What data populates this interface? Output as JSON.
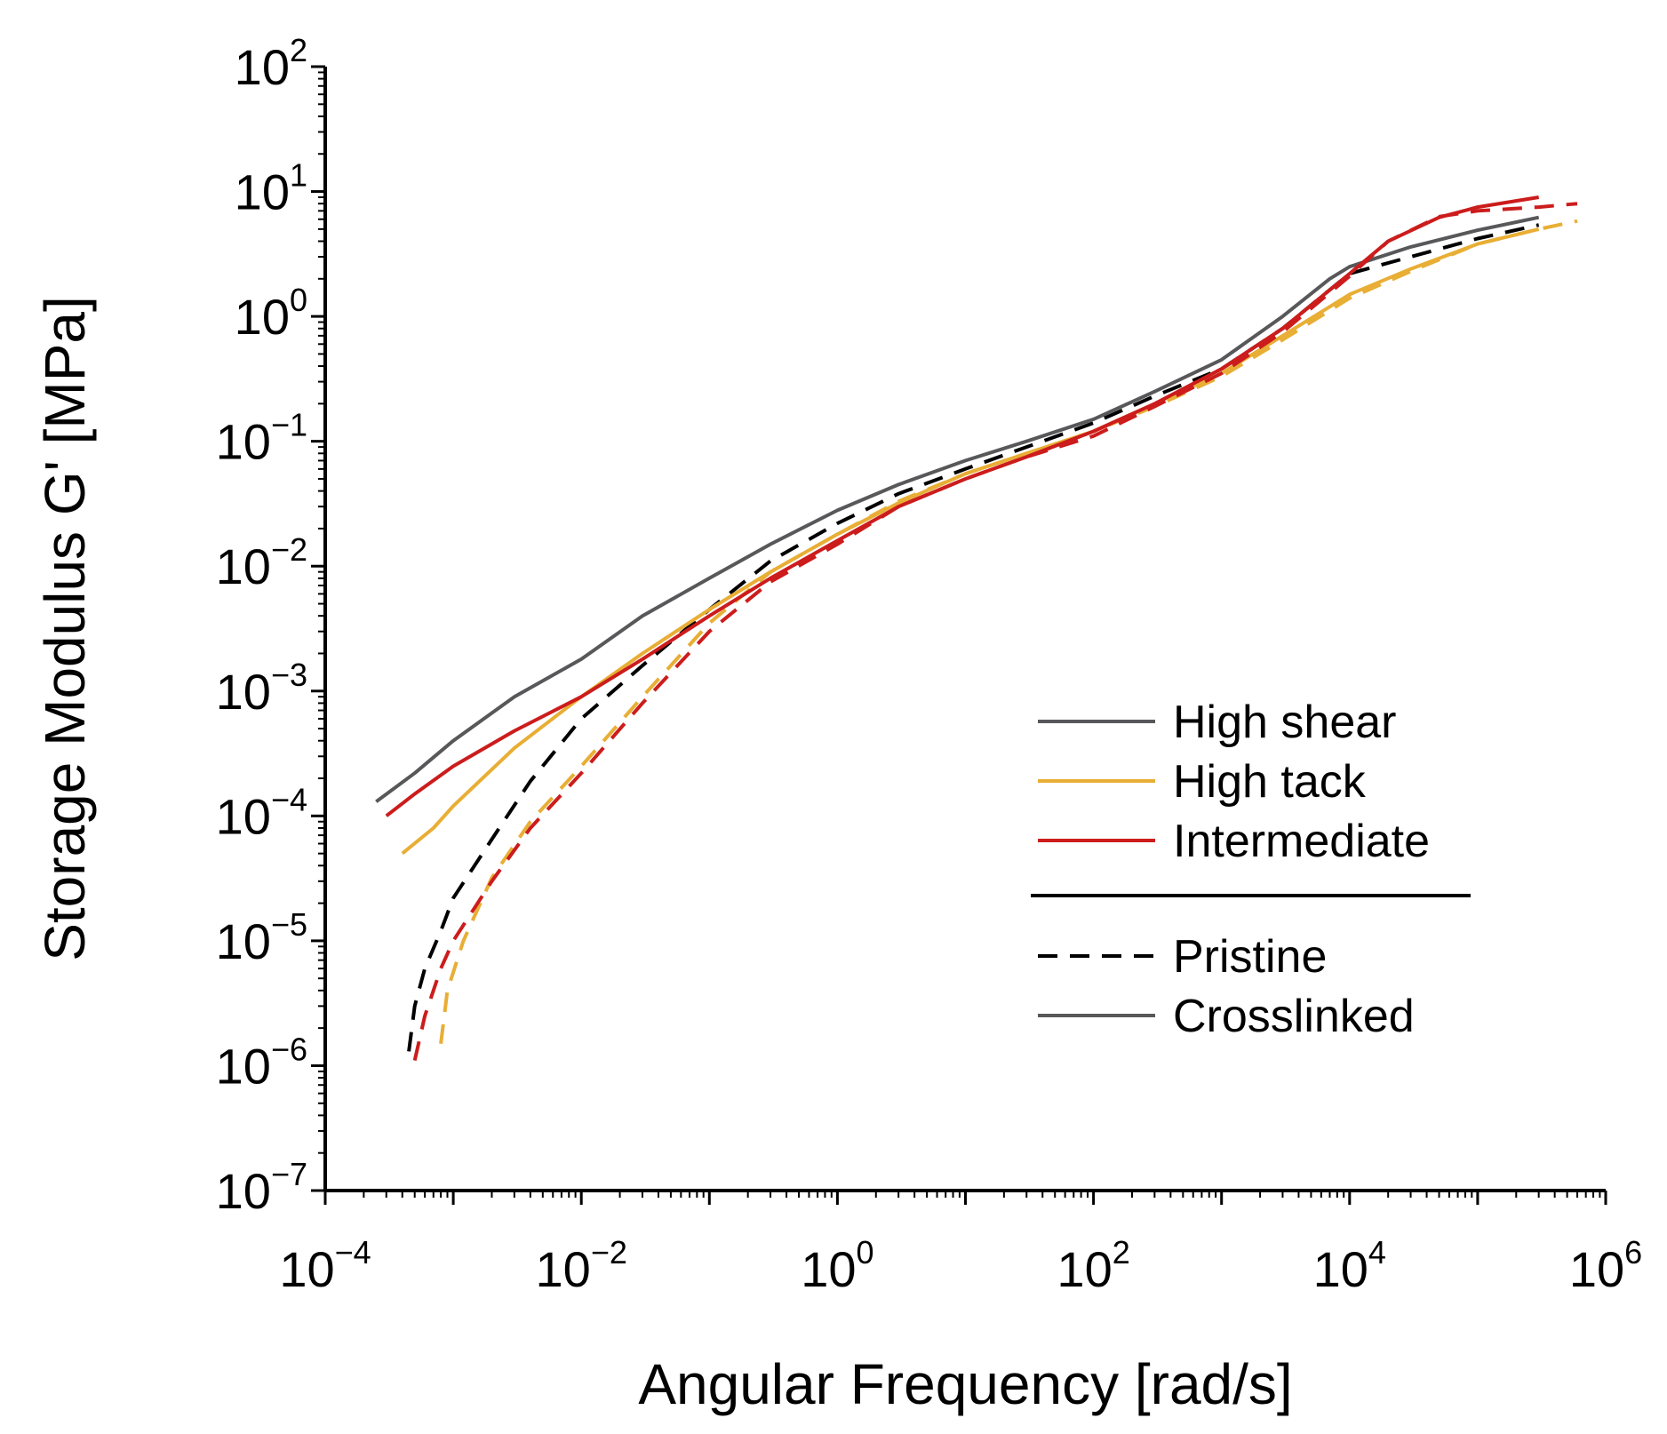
{
  "chart_data": {
    "type": "line",
    "xlabel": "Angular Frequency [rad/s]",
    "ylabel": "Storage Modulus G' [MPa]",
    "x_scale": "log",
    "y_scale": "log",
    "xlim": [
      0.0001,
      1000000
    ],
    "ylim": [
      1e-07,
      100
    ],
    "x_ticks": [
      {
        "base": "10",
        "exp": "−4",
        "value": 0.0001
      },
      {
        "base": "10",
        "exp": "−2",
        "value": 0.01
      },
      {
        "base": "10",
        "exp": "0",
        "value": 1
      },
      {
        "base": "10",
        "exp": "2",
        "value": 100
      },
      {
        "base": "10",
        "exp": "4",
        "value": 10000
      },
      {
        "base": "10",
        "exp": "6",
        "value": 1000000
      }
    ],
    "y_ticks": [
      {
        "base": "10",
        "exp": "2",
        "value": 100
      },
      {
        "base": "10",
        "exp": "1",
        "value": 10
      },
      {
        "base": "10",
        "exp": "0",
        "value": 1
      },
      {
        "base": "10",
        "exp": "−1",
        "value": 0.1
      },
      {
        "base": "10",
        "exp": "−2",
        "value": 0.01
      },
      {
        "base": "10",
        "exp": "−3",
        "value": 0.001
      },
      {
        "base": "10",
        "exp": "−4",
        "value": 0.0001
      },
      {
        "base": "10",
        "exp": "−5",
        "value": 1e-05
      },
      {
        "base": "10",
        "exp": "−6",
        "value": 1e-06
      },
      {
        "base": "10",
        "exp": "−7",
        "value": 1e-07
      }
    ],
    "legend": {
      "placement": "lower-right",
      "colors": [
        {
          "label": "High shear",
          "color": "#58585a"
        },
        {
          "label": "High tack",
          "color": "#e8ae35"
        },
        {
          "label": "Intermediate",
          "color": "#cc1c1c"
        }
      ],
      "styles": [
        {
          "label": "Pristine",
          "dash": "dashed",
          "color": "#000000"
        },
        {
          "label": "Crosslinked",
          "dash": "solid",
          "color": "#58585a"
        }
      ]
    },
    "series": [
      {
        "name": "High shear Crosslinked",
        "color": "#58585a",
        "style": "solid",
        "x": [
          0.00025,
          0.0005,
          0.001,
          0.003,
          0.01,
          0.03,
          0.1,
          0.3,
          1,
          3,
          10,
          30,
          100,
          300,
          1000,
          3000,
          7000,
          10000,
          30000,
          100000,
          300000
        ],
        "y": [
          0.00013,
          0.00022,
          0.0004,
          0.0009,
          0.0018,
          0.004,
          0.008,
          0.015,
          0.028,
          0.045,
          0.07,
          0.1,
          0.15,
          0.25,
          0.45,
          1.0,
          2.0,
          2.5,
          3.6,
          4.9,
          6.2
        ]
      },
      {
        "name": "High shear Pristine",
        "color": "#000000",
        "style": "dashed",
        "x": [
          0.00045,
          0.0005,
          0.0006,
          0.0008,
          0.001,
          0.002,
          0.004,
          0.01,
          0.03,
          0.1,
          0.3,
          1,
          3,
          10,
          30,
          100,
          300,
          1000,
          3000,
          10000,
          30000,
          100000,
          300000
        ],
        "y": [
          1.3e-06,
          3e-06,
          6e-06,
          1.2e-05,
          2.2e-05,
          6.5e-05,
          0.00019,
          0.0006,
          0.0016,
          0.0045,
          0.011,
          0.022,
          0.038,
          0.06,
          0.09,
          0.14,
          0.23,
          0.38,
          0.8,
          2.2,
          3.0,
          4.2,
          5.4
        ]
      },
      {
        "name": "High tack Crosslinked",
        "color": "#e8ae35",
        "style": "solid",
        "x": [
          0.0004,
          0.0007,
          0.001,
          0.003,
          0.01,
          0.03,
          0.1,
          0.3,
          1,
          3,
          10,
          30,
          100,
          300,
          1000,
          3000,
          10000,
          30000,
          100000,
          300000
        ],
        "y": [
          5e-05,
          8e-05,
          0.00012,
          0.00035,
          0.0009,
          0.002,
          0.0045,
          0.009,
          0.018,
          0.032,
          0.055,
          0.08,
          0.12,
          0.2,
          0.35,
          0.7,
          1.5,
          2.4,
          3.8,
          5.0
        ]
      },
      {
        "name": "High tack Pristine",
        "color": "#e8ae35",
        "style": "dashed",
        "x": [
          0.0008,
          0.0009,
          0.0012,
          0.002,
          0.004,
          0.01,
          0.03,
          0.1,
          0.3,
          1,
          3,
          10,
          30,
          100,
          300,
          1000,
          3000,
          10000,
          30000,
          100000,
          300000,
          600000
        ],
        "y": [
          1.5e-06,
          4e-06,
          1e-05,
          3.2e-05,
          9e-05,
          0.00025,
          0.0009,
          0.0035,
          0.009,
          0.018,
          0.033,
          0.055,
          0.08,
          0.12,
          0.19,
          0.33,
          0.65,
          1.4,
          2.3,
          3.8,
          5.0,
          5.8
        ]
      },
      {
        "name": "Intermediate Crosslinked",
        "color": "#cc1c1c",
        "style": "solid",
        "x": [
          0.0003,
          0.0005,
          0.001,
          0.003,
          0.01,
          0.03,
          0.1,
          0.3,
          1,
          3,
          10,
          30,
          100,
          300,
          1000,
          3000,
          10000,
          20000,
          50000,
          100000,
          300000
        ],
        "y": [
          0.0001,
          0.00015,
          0.00025,
          0.00048,
          0.0009,
          0.0018,
          0.004,
          0.008,
          0.016,
          0.03,
          0.05,
          0.075,
          0.12,
          0.2,
          0.38,
          0.8,
          2.2,
          4.0,
          6.2,
          7.5,
          9.0
        ]
      },
      {
        "name": "Intermediate Pristine",
        "color": "#cc1c1c",
        "style": "dashed",
        "x": [
          0.0005,
          0.0006,
          0.0008,
          0.001,
          0.002,
          0.004,
          0.01,
          0.03,
          0.1,
          0.3,
          1,
          3,
          10,
          30,
          100,
          300,
          1000,
          3000,
          10000,
          20000,
          50000,
          100000,
          300000,
          600000
        ],
        "y": [
          1.1e-06,
          2.5e-06,
          6e-06,
          1e-05,
          3e-05,
          8e-05,
          0.00022,
          0.0008,
          0.003,
          0.0075,
          0.015,
          0.03,
          0.05,
          0.075,
          0.11,
          0.19,
          0.35,
          0.75,
          2.1,
          4.0,
          6.3,
          7.0,
          7.5,
          8.0
        ]
      }
    ]
  }
}
